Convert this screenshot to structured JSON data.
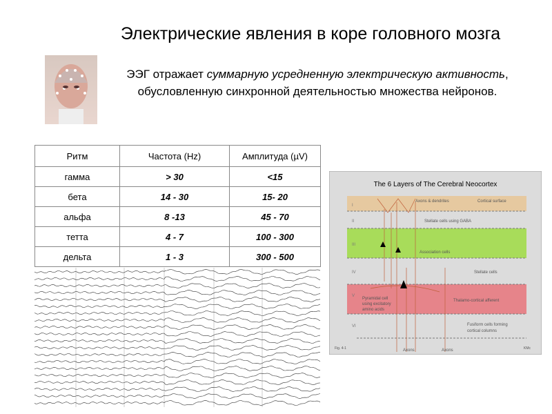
{
  "title": "Электрические явления в коре головного мозга",
  "subtitle": {
    "p1": "ЭЭГ отражает ",
    "p2": "суммарную усредненную электрическую активность",
    "p3": ", обусловленную синхронной деятельностью множества нейронов."
  },
  "table": {
    "headers": [
      "Ритм",
      "Частота (Hz)",
      "Амплитуда (µV)"
    ],
    "rows": [
      [
        "гамма",
        ">  30",
        "<15"
      ],
      [
        "бета",
        "14 - 30",
        "15- 20"
      ],
      [
        "альфа",
        "8 -13",
        "45 - 70"
      ],
      [
        "тетта",
        "4 - 7",
        "100 - 300"
      ],
      [
        "дельта",
        "1 - 3",
        "300 - 500"
      ]
    ]
  },
  "diagram": {
    "title": "The 6 Layers of The Cerebral Neocortex",
    "layers": [
      "I",
      "II",
      "III",
      "IV",
      "V",
      "VI"
    ],
    "labels": {
      "axons_dendrites": "Axons & dendrites",
      "surface": "Cortical surface",
      "stellate_gaba": "Stellate cells using GABA",
      "association": "Association cells",
      "stellate": "Stellate cells",
      "pyramidal": "Pyramidal cell",
      "pyramidal2": "using excitatory",
      "pyramidal3": "amino acids",
      "thalamo": "Thalamo-cortical afferent",
      "fusiform": "Fusiform cells forming",
      "fusiform2": "cortical columns",
      "axons": "Axons",
      "fig": "Fig. 4-1",
      "credit": "KMc"
    },
    "colors": {
      "layer1": "#e6c9a0",
      "layer3": "#a8dc5a",
      "layer5": "#e6848a",
      "bg": "#dcdcdc"
    }
  }
}
